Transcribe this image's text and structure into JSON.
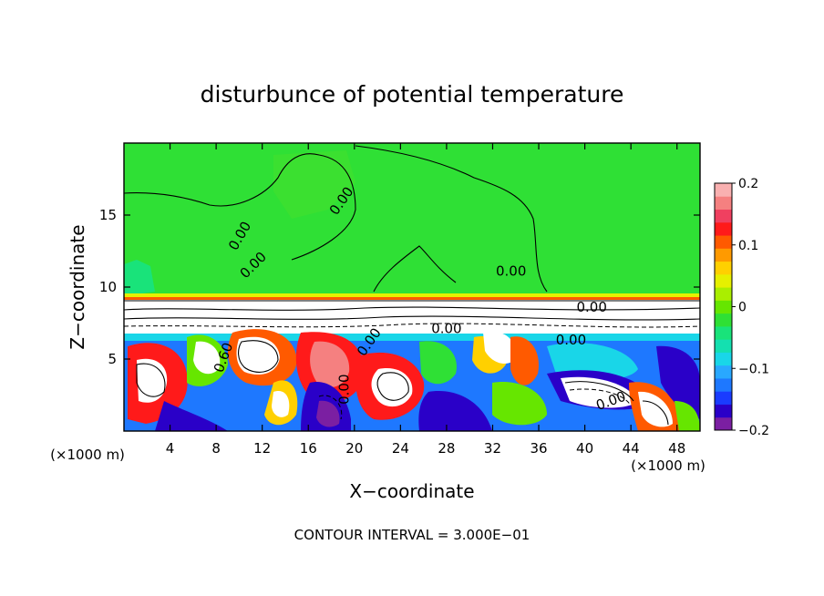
{
  "chart_data": {
    "type": "heatmap",
    "title": "disturbunce of potential temperature",
    "xlabel": "X−coordinate",
    "ylabel": "Z−coordinate",
    "x_unit_label": "(×1000 m)",
    "z_unit_label": "(×1000 m)",
    "xlim": [
      0,
      50
    ],
    "ylim": [
      0,
      20
    ],
    "x_ticks": [
      "4",
      "8",
      "12",
      "16",
      "20",
      "24",
      "28",
      "32",
      "36",
      "40",
      "44",
      "48"
    ],
    "x_tick_values": [
      4,
      8,
      12,
      16,
      20,
      24,
      28,
      32,
      36,
      40,
      44,
      48
    ],
    "y_ticks": [
      "5",
      "10",
      "15"
    ],
    "y_tick_values": [
      5,
      10,
      15
    ],
    "colorbar": {
      "range": [
        -0.2,
        0.2
      ],
      "tick_labels": [
        "0.2",
        "0.1",
        "0",
        "−0.1",
        "−0.2"
      ],
      "tick_values": [
        0.2,
        0.1,
        0,
        -0.1,
        -0.2
      ],
      "colors": [
        "#7b1fa2",
        "#2a00c8",
        "#1a3cff",
        "#1e78ff",
        "#29a8ff",
        "#19d6e8",
        "#14e0b0",
        "#19e37a",
        "#2fe035",
        "#66e600",
        "#aaee00",
        "#e6f000",
        "#ffd000",
        "#ff9a00",
        "#ff5a00",
        "#ff1a1a",
        "#f04060",
        "#f58080",
        "#f9b0b0"
      ]
    },
    "contour_labels": [
      "0.00",
      "0.00",
      "0.00",
      "0.00",
      "0.00",
      "0.00",
      "0.60",
      "0.00",
      "0.00",
      "0.00",
      "0.00"
    ],
    "contour_interval_text": "CONTOUR INTERVAL = 3.000E−01",
    "grid": false
  }
}
